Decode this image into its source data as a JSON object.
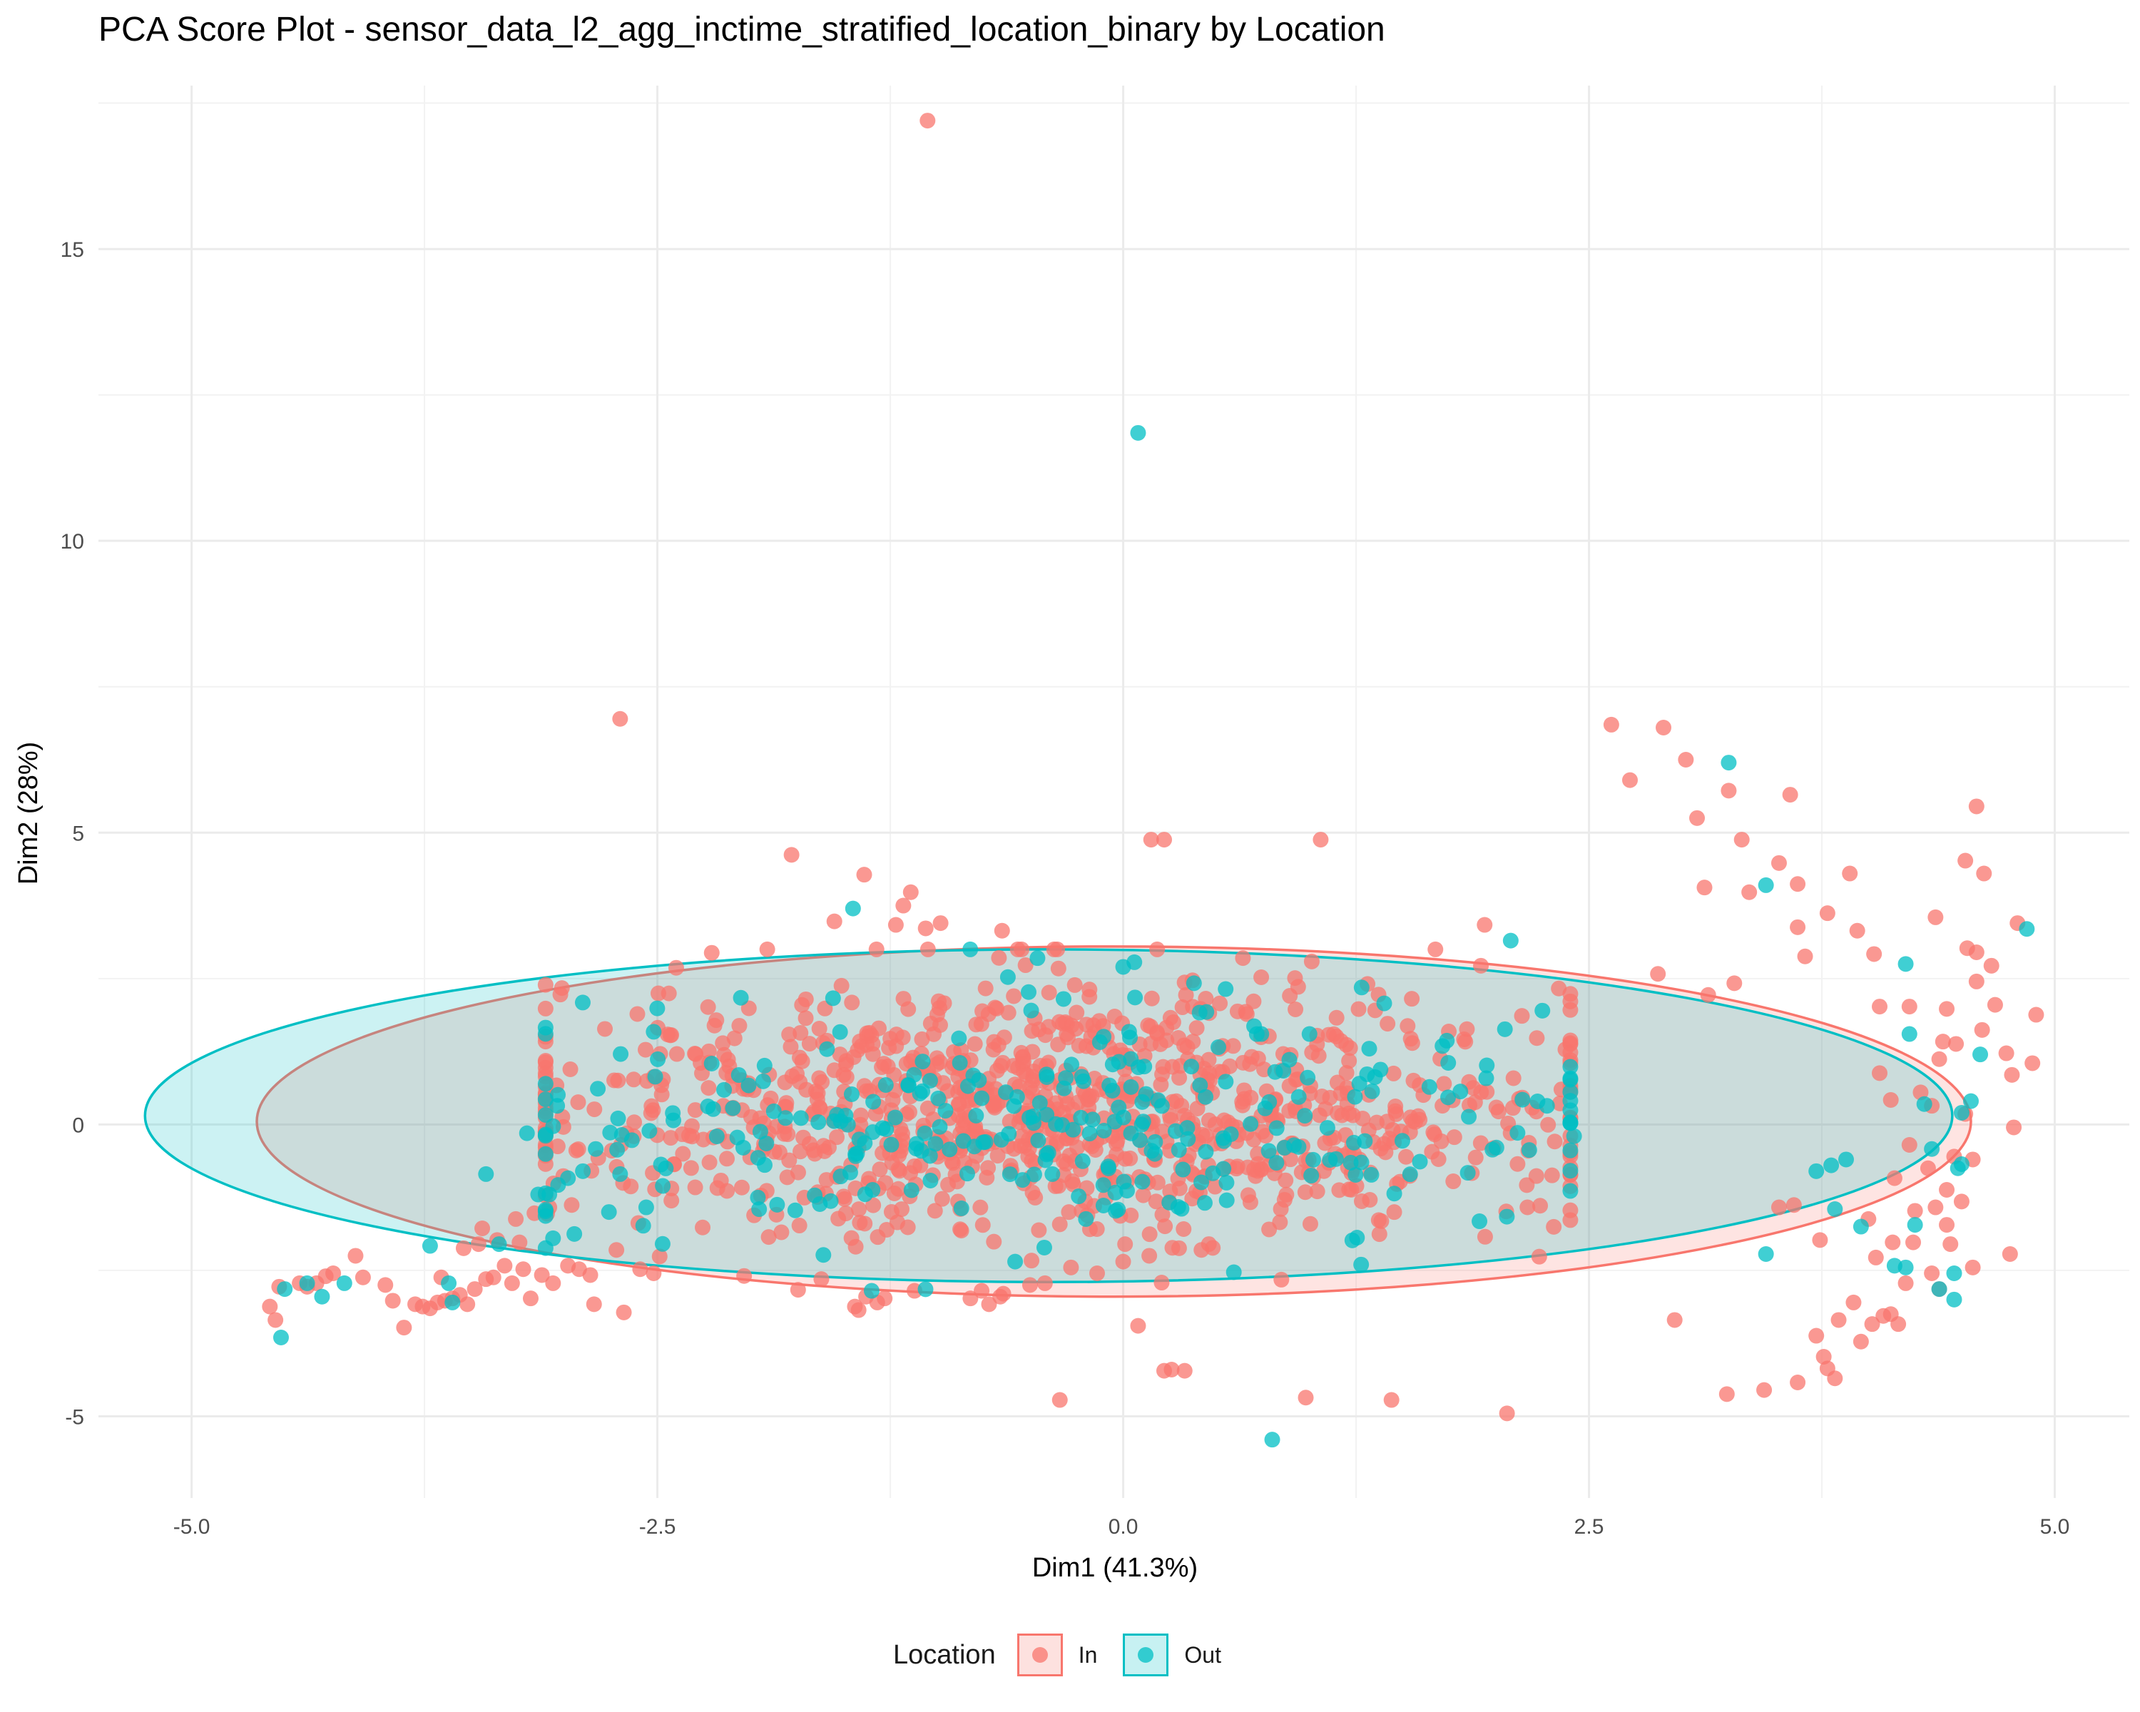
{
  "chart_data": {
    "type": "scatter",
    "title": "PCA Score Plot - sensor_data_l2_agg_inctime_stratified_location_binary by Location",
    "xlabel": "Dim1 (41.3%)",
    "ylabel": "Dim2 (28%)",
    "xlim": [
      -5.5,
      5.4
    ],
    "ylim": [
      -6.4,
      17.8
    ],
    "xticks": [
      -5.0,
      -2.5,
      0.0,
      2.5,
      5.0
    ],
    "xtick_labels": [
      "-5.0",
      "-2.5",
      "0.0",
      "2.5",
      "5.0"
    ],
    "yticks": [
      -5,
      0,
      5,
      10,
      15
    ],
    "ytick_labels": [
      "-5",
      "0",
      "5",
      "10",
      "15"
    ],
    "grid": true,
    "legend": {
      "title": "Location",
      "position": "bottom",
      "entries": [
        "In",
        "Out"
      ]
    },
    "colors": {
      "In": "#F8766D",
      "Out": "#00BFC4"
    },
    "ellipses": [
      {
        "series": "In",
        "center": [
          -0.05,
          0.05
        ],
        "radius_x": 4.6,
        "radius_y": 3.0
      },
      {
        "series": "Out",
        "center": [
          -0.4,
          0.15
        ],
        "radius_x": 4.85,
        "radius_y": 2.85
      }
    ],
    "series": [
      {
        "name": "In",
        "points": [
          [
            -1.05,
            17.2
          ],
          [
            -2.7,
            6.95
          ],
          [
            2.62,
            6.85
          ],
          [
            2.9,
            6.8
          ],
          [
            3.02,
            6.25
          ],
          [
            2.72,
            5.9
          ],
          [
            3.25,
            5.72
          ],
          [
            3.58,
            5.65
          ],
          [
            4.58,
            5.45
          ],
          [
            3.08,
            5.25
          ],
          [
            0.15,
            4.88
          ],
          [
            0.22,
            4.88
          ],
          [
            1.06,
            4.88
          ],
          [
            3.32,
            4.88
          ],
          [
            4.52,
            4.52
          ],
          [
            3.52,
            4.48
          ],
          [
            3.9,
            4.3
          ],
          [
            4.62,
            4.3
          ],
          [
            -1.39,
            4.28
          ],
          [
            -1.78,
            4.62
          ],
          [
            3.12,
            4.06
          ],
          [
            3.62,
            4.12
          ],
          [
            3.36,
            3.98
          ],
          [
            -1.14,
            3.98
          ],
          [
            -1.18,
            3.75
          ],
          [
            -1.55,
            3.48
          ],
          [
            3.78,
            3.62
          ],
          [
            4.36,
            3.55
          ],
          [
            3.62,
            3.38
          ],
          [
            3.94,
            3.32
          ],
          [
            -0.98,
            3.45
          ],
          [
            4.8,
            3.45
          ],
          [
            -1.22,
            3.42
          ],
          [
            -1.06,
            3.36
          ],
          [
            -0.65,
            3.32
          ],
          [
            4.53,
            3.02
          ],
          [
            4.58,
            2.95
          ],
          [
            4.03,
            2.92
          ],
          [
            3.66,
            2.88
          ],
          [
            4.66,
            2.72
          ],
          [
            2.87,
            2.58
          ],
          [
            3.28,
            2.42
          ],
          [
            4.58,
            2.45
          ],
          [
            3.14,
            2.22
          ],
          [
            4.06,
            2.02
          ],
          [
            4.22,
            2.02
          ],
          [
            4.42,
            1.98
          ],
          [
            4.68,
            2.05
          ],
          [
            4.9,
            1.88
          ],
          [
            4.4,
            1.42
          ],
          [
            4.61,
            1.62
          ],
          [
            4.47,
            1.38
          ],
          [
            4.74,
            1.22
          ],
          [
            4.88,
            1.05
          ],
          [
            4.38,
            1.12
          ],
          [
            4.06,
            0.88
          ],
          [
            4.77,
            0.85
          ],
          [
            4.28,
            0.55
          ],
          [
            4.12,
            0.42
          ],
          [
            4.34,
            0.32
          ],
          [
            4.52,
            0.18
          ],
          [
            4.78,
            -0.05
          ],
          [
            4.22,
            -0.35
          ],
          [
            4.46,
            -0.55
          ],
          [
            4.56,
            -0.6
          ],
          [
            4.32,
            -0.75
          ],
          [
            4.14,
            -0.92
          ],
          [
            4.42,
            -1.12
          ],
          [
            4.36,
            -1.42
          ],
          [
            4.5,
            -1.32
          ],
          [
            4.25,
            -1.48
          ],
          [
            4.0,
            -1.62
          ],
          [
            4.42,
            -1.72
          ],
          [
            3.74,
            -1.98
          ],
          [
            4.13,
            -2.02
          ],
          [
            4.24,
            -2.02
          ],
          [
            4.44,
            -2.05
          ],
          [
            4.76,
            -2.22
          ],
          [
            4.04,
            -2.28
          ],
          [
            4.56,
            -2.45
          ],
          [
            4.34,
            -2.55
          ],
          [
            4.2,
            -2.72
          ],
          [
            4.38,
            -2.82
          ],
          [
            3.92,
            -3.05
          ],
          [
            4.12,
            -3.25
          ],
          [
            4.16,
            -3.42
          ],
          [
            4.08,
            -3.28
          ],
          [
            3.84,
            -3.35
          ],
          [
            2.96,
            -3.35
          ],
          [
            3.72,
            -3.62
          ],
          [
            3.76,
            -3.98
          ],
          [
            3.96,
            -3.72
          ],
          [
            4.02,
            -3.42
          ],
          [
            3.82,
            -4.35
          ],
          [
            3.78,
            -4.18
          ],
          [
            3.62,
            -4.42
          ],
          [
            3.44,
            -4.55
          ],
          [
            3.24,
            -4.62
          ],
          [
            2.06,
            -4.95
          ],
          [
            1.44,
            -4.72
          ],
          [
            0.98,
            -4.68
          ],
          [
            -0.34,
            -4.72
          ],
          [
            0.22,
            -4.22
          ],
          [
            0.26,
            -4.2
          ],
          [
            0.33,
            -4.22
          ],
          [
            0.08,
            -3.45
          ],
          [
            3.52,
            -1.42
          ],
          [
            3.6,
            -1.38
          ],
          [
            1.94,
            3.42
          ],
          [
            1.92,
            2.72
          ],
          [
            2.22,
            1.48
          ],
          [
            2.14,
            1.86
          ],
          [
            -4.58,
            -3.12
          ],
          [
            -4.55,
            -3.35
          ],
          [
            -4.53,
            -2.78
          ],
          [
            -4.42,
            -2.72
          ],
          [
            -4.38,
            -2.78
          ],
          [
            -4.33,
            -2.72
          ],
          [
            -4.28,
            -2.6
          ],
          [
            -4.24,
            -2.55
          ],
          [
            -4.08,
            -2.62
          ],
          [
            -4.12,
            -2.25
          ],
          [
            -3.96,
            -2.75
          ],
          [
            -3.92,
            -3.02
          ],
          [
            -3.86,
            -3.48
          ],
          [
            -3.8,
            -3.08
          ],
          [
            -3.76,
            -3.12
          ],
          [
            -3.72,
            -3.15
          ],
          [
            -3.68,
            -3.05
          ],
          [
            -3.64,
            -3.02
          ],
          [
            -3.6,
            -2.98
          ],
          [
            -3.56,
            -2.92
          ],
          [
            -3.52,
            -3.08
          ],
          [
            -3.48,
            -2.82
          ],
          [
            -3.42,
            -2.65
          ],
          [
            -3.38,
            -2.62
          ],
          [
            -3.32,
            -2.42
          ],
          [
            -3.28,
            -2.72
          ],
          [
            -3.22,
            -2.48
          ],
          [
            -3.18,
            -2.98
          ],
          [
            -3.12,
            -2.58
          ],
          [
            -3.06,
            -2.72
          ],
          [
            -2.98,
            -2.42
          ],
          [
            -2.92,
            -2.48
          ],
          [
            -2.86,
            -2.58
          ],
          [
            -2.84,
            -3.08
          ],
          [
            -2.68,
            -3.22
          ],
          [
            -2.52,
            -2.55
          ],
          [
            -3.66,
            -2.62
          ],
          [
            -3.54,
            -2.12
          ],
          [
            -3.46,
            -2.05
          ],
          [
            -3.44,
            -1.78
          ],
          [
            -3.36,
            -1.98
          ],
          [
            -3.24,
            -2.02
          ],
          [
            -3.16,
            -1.52
          ],
          [
            -3.08,
            -1.42
          ],
          [
            -2.96,
            -1.38
          ],
          [
            -2.72,
            -2.15
          ],
          [
            -3.26,
            -1.62
          ],
          [
            -1.38,
            -2.95
          ],
          [
            -1.32,
            -3.05
          ],
          [
            -1.28,
            -2.98
          ],
          [
            -1.12,
            -2.85
          ],
          [
            -0.82,
            -2.98
          ],
          [
            -0.76,
            -2.85
          ],
          [
            -0.72,
            -3.08
          ],
          [
            -0.66,
            -2.95
          ],
          [
            -0.5,
            -2.75
          ],
          [
            -0.42,
            -2.72
          ],
          [
            -1.62,
            -2.65
          ],
          [
            -1.44,
            -3.12
          ],
          [
            -1.42,
            -3.18
          ],
          [
            -0.28,
            -2.45
          ],
          [
            -0.14,
            -2.55
          ],
          [
            0.0,
            -2.35
          ],
          [
            0.14,
            -2.25
          ],
          [
            0.3,
            -2.12
          ],
          [
            0.42,
            -2.15
          ],
          [
            0.46,
            -2.05
          ]
        ],
        "cloud": {
          "center": [
            -0.35,
            0.25
          ],
          "spread": [
            1.45,
            1.1
          ],
          "count": 1050
        }
      },
      {
        "name": "Out",
        "points": [
          [
            0.08,
            11.85
          ],
          [
            3.25,
            6.2
          ],
          [
            3.45,
            4.1
          ],
          [
            -1.45,
            3.7
          ],
          [
            4.85,
            3.35
          ],
          [
            2.08,
            3.15
          ],
          [
            4.2,
            2.75
          ],
          [
            4.6,
            1.2
          ],
          [
            4.22,
            1.55
          ],
          [
            4.55,
            0.4
          ],
          [
            4.3,
            0.35
          ],
          [
            4.5,
            0.2
          ],
          [
            2.25,
            1.95
          ],
          [
            2.42,
            -0.2
          ],
          [
            4.34,
            -0.42
          ],
          [
            4.48,
            -0.75
          ],
          [
            4.5,
            -0.68
          ],
          [
            3.72,
            -0.8
          ],
          [
            3.8,
            -0.7
          ],
          [
            3.88,
            -0.6
          ],
          [
            3.82,
            -1.45
          ],
          [
            3.96,
            -1.75
          ],
          [
            4.25,
            -1.72
          ],
          [
            3.45,
            -2.22
          ],
          [
            4.14,
            -2.42
          ],
          [
            4.2,
            -2.45
          ],
          [
            4.46,
            -2.55
          ],
          [
            4.38,
            -2.82
          ],
          [
            4.46,
            -3.0
          ],
          [
            0.8,
            -5.4
          ],
          [
            -0.58,
            -2.35
          ],
          [
            -1.35,
            -2.85
          ],
          [
            -4.52,
            -3.65
          ],
          [
            -4.5,
            -2.82
          ],
          [
            -4.38,
            -2.72
          ],
          [
            -4.3,
            -2.95
          ],
          [
            -4.18,
            -2.72
          ],
          [
            -3.72,
            -2.08
          ],
          [
            -3.62,
            -2.72
          ],
          [
            -3.6,
            -3.05
          ],
          [
            -3.42,
            -0.85
          ],
          [
            -3.35,
            -2.05
          ],
          [
            -3.2,
            -0.15
          ],
          [
            -3.14,
            -1.2
          ],
          [
            -3.08,
            -1.2
          ],
          [
            -3.06,
            -1.95
          ],
          [
            -2.98,
            -0.92
          ],
          [
            -2.9,
            -0.8
          ],
          [
            -2.76,
            -1.5
          ],
          [
            -2.7,
            -0.85
          ],
          [
            -2.56,
            -1.42
          ],
          [
            0.0,
            2.7
          ],
          [
            0.06,
            2.78
          ],
          [
            -0.32,
            2.15
          ],
          [
            -0.46,
            2.85
          ],
          [
            0.38,
            2.42
          ],
          [
            0.55,
            2.32
          ],
          [
            -0.08,
            -0.72
          ],
          [
            -0.38,
            -0.85
          ],
          [
            -0.54,
            -0.95
          ],
          [
            -0.2,
            -1.62
          ],
          [
            -0.04,
            -1.48
          ],
          [
            0.86,
            0.92
          ],
          [
            1.0,
            1.55
          ]
        ],
        "cloud": {
          "center": [
            -0.3,
            0.05
          ],
          "spread": [
            1.55,
            0.95
          ],
          "count": 300
        }
      }
    ]
  }
}
